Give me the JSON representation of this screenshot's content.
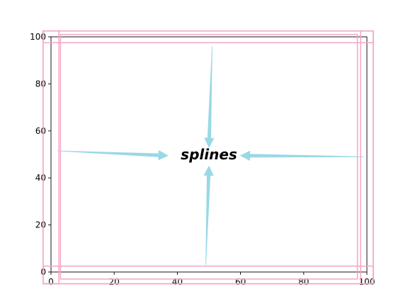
{
  "chart_data": {
    "type": "scatter",
    "title": "",
    "xlabel": "",
    "ylabel": "",
    "xlim": [
      0,
      100
    ],
    "ylim": [
      0,
      100
    ],
    "x_ticks": [
      0,
      20,
      40,
      60,
      80,
      100
    ],
    "y_ticks": [
      0,
      20,
      40,
      60,
      80,
      100
    ],
    "grid": false,
    "center_text": {
      "text": "splines",
      "x": 50,
      "y": 50
    },
    "arrows": [
      {
        "from": [
          2,
          51.5
        ],
        "to": [
          37,
          49.5
        ]
      },
      {
        "from": [
          99,
          49
        ],
        "to": [
          60,
          49.5
        ]
      },
      {
        "from": [
          51,
          96
        ],
        "to": [
          50,
          53
        ]
      },
      {
        "from": [
          49,
          3
        ],
        "to": [
          50,
          45
        ]
      }
    ],
    "bounding_rectangles": [
      {
        "x0": 3,
        "x1": 97,
        "y0": -3,
        "y1": 101
      },
      {
        "x0": -2.5,
        "x1": 102,
        "y0": 97.5,
        "y1": 102.5
      },
      {
        "x0": -2.5,
        "x1": 102,
        "y0": -5,
        "y1": 2.5
      },
      {
        "x0": -2.5,
        "x1": 102,
        "y0": -5,
        "y1": 102.5
      },
      {
        "x0": -2.5,
        "x1": 2.5,
        "y0": -5,
        "y1": 102.5
      },
      {
        "x0": 98,
        "x1": 102,
        "y0": -5,
        "y1": 102.5
      }
    ],
    "colors": {
      "arrow": "#9ad8e6",
      "rect": "#f4a6c6",
      "axis": "#000000"
    }
  }
}
